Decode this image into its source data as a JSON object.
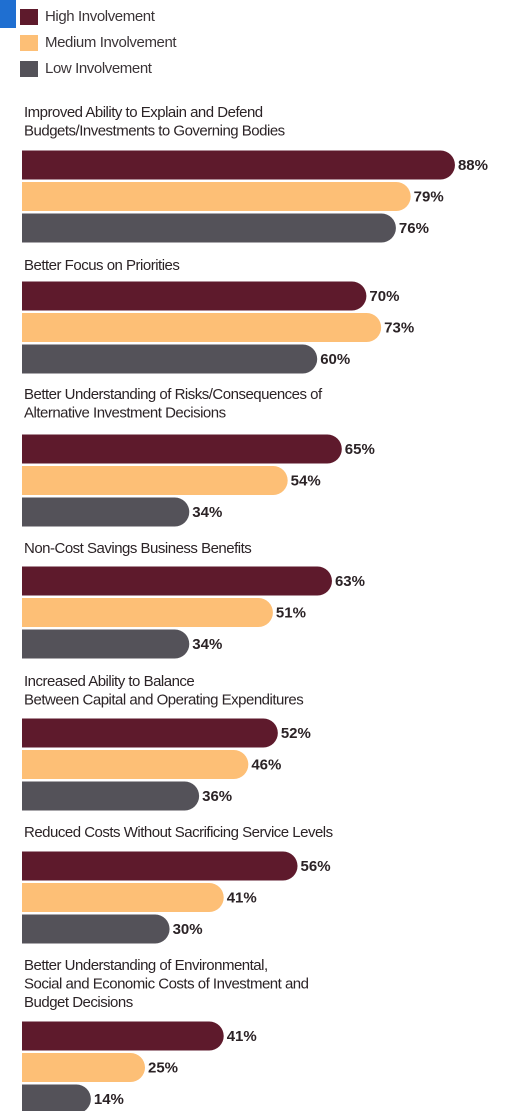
{
  "chart_data": {
    "type": "bar",
    "orientation": "horizontal",
    "categories": [
      [
        "Improved Ability to Explain and Defend",
        "Budgets/Investments to Governing Bodies"
      ],
      [
        "Better Focus on Priorities"
      ],
      [
        "Better Understanding of Risks/Consequences of",
        "Alternative Investment Decisions"
      ],
      [
        "Non-Cost Savings Business Benefits"
      ],
      [
        "Increased Ability to Balance",
        "Between Capital and Operating Expenditures"
      ],
      [
        "Reduced Costs Without Sacrificing Service Levels"
      ],
      [
        "Better Understanding of Environmental,",
        "Social and Economic Costs of Investment and",
        "Budget Decisions"
      ]
    ],
    "xlim": [
      0,
      100
    ],
    "series": [
      {
        "name": "High Involvement",
        "color": "#5e1a2c",
        "values": [
          88,
          70,
          65,
          63,
          52,
          56,
          41
        ],
        "value_labels": [
          "88%",
          "70%",
          "65%",
          "63%",
          "52%",
          "56%",
          "41%"
        ]
      },
      {
        "name": "Medium Involvement",
        "color": "#fdbf76",
        "values": [
          79,
          73,
          54,
          51,
          46,
          41,
          25
        ],
        "value_labels": [
          "79%",
          "73%",
          "54%",
          "51%",
          "46%",
          "41%",
          "25%"
        ]
      },
      {
        "name": "Low Involvement",
        "color": "#545259",
        "values": [
          76,
          60,
          34,
          34,
          36,
          30,
          14
        ],
        "value_labels": [
          "76%",
          "60%",
          "34%",
          "34%",
          "36%",
          "30%",
          "14%"
        ]
      }
    ]
  }
}
